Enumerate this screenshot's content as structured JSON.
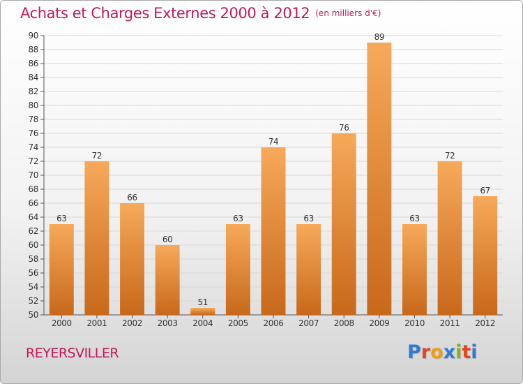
{
  "header": {
    "title": "Achats et Charges Externes 2000 à 2012",
    "subtitle": "(en milliers d'€)"
  },
  "footer": {
    "commune": "REYERSVILLER",
    "logo_text": "Proxiti",
    "logo_colors": [
      "#2e7bd6",
      "#e8431c",
      "#f39c12",
      "#2e7bd6",
      "#7cb518",
      "#e8431c",
      "#2e7bd6"
    ]
  },
  "colors": {
    "bar_light": "#f7a95a",
    "bar_dark": "#c8681a",
    "title": "#c2185b"
  },
  "chart_data": {
    "type": "bar",
    "categories": [
      "2000",
      "2001",
      "2002",
      "2003",
      "2004",
      "2005",
      "2006",
      "2007",
      "2008",
      "2009",
      "2010",
      "2011",
      "2012"
    ],
    "values": [
      63,
      72,
      66,
      60,
      51,
      63,
      74,
      63,
      76,
      89,
      63,
      72,
      67
    ],
    "title": "Achats et Charges Externes 2000 à 2012",
    "xlabel": "",
    "ylabel": "",
    "ylim": [
      50,
      90
    ],
    "yticks": [
      50,
      52,
      54,
      56,
      58,
      60,
      62,
      64,
      66,
      68,
      70,
      72,
      74,
      76,
      78,
      80,
      82,
      84,
      86,
      88,
      90
    ],
    "grid": true,
    "legend": "none"
  }
}
